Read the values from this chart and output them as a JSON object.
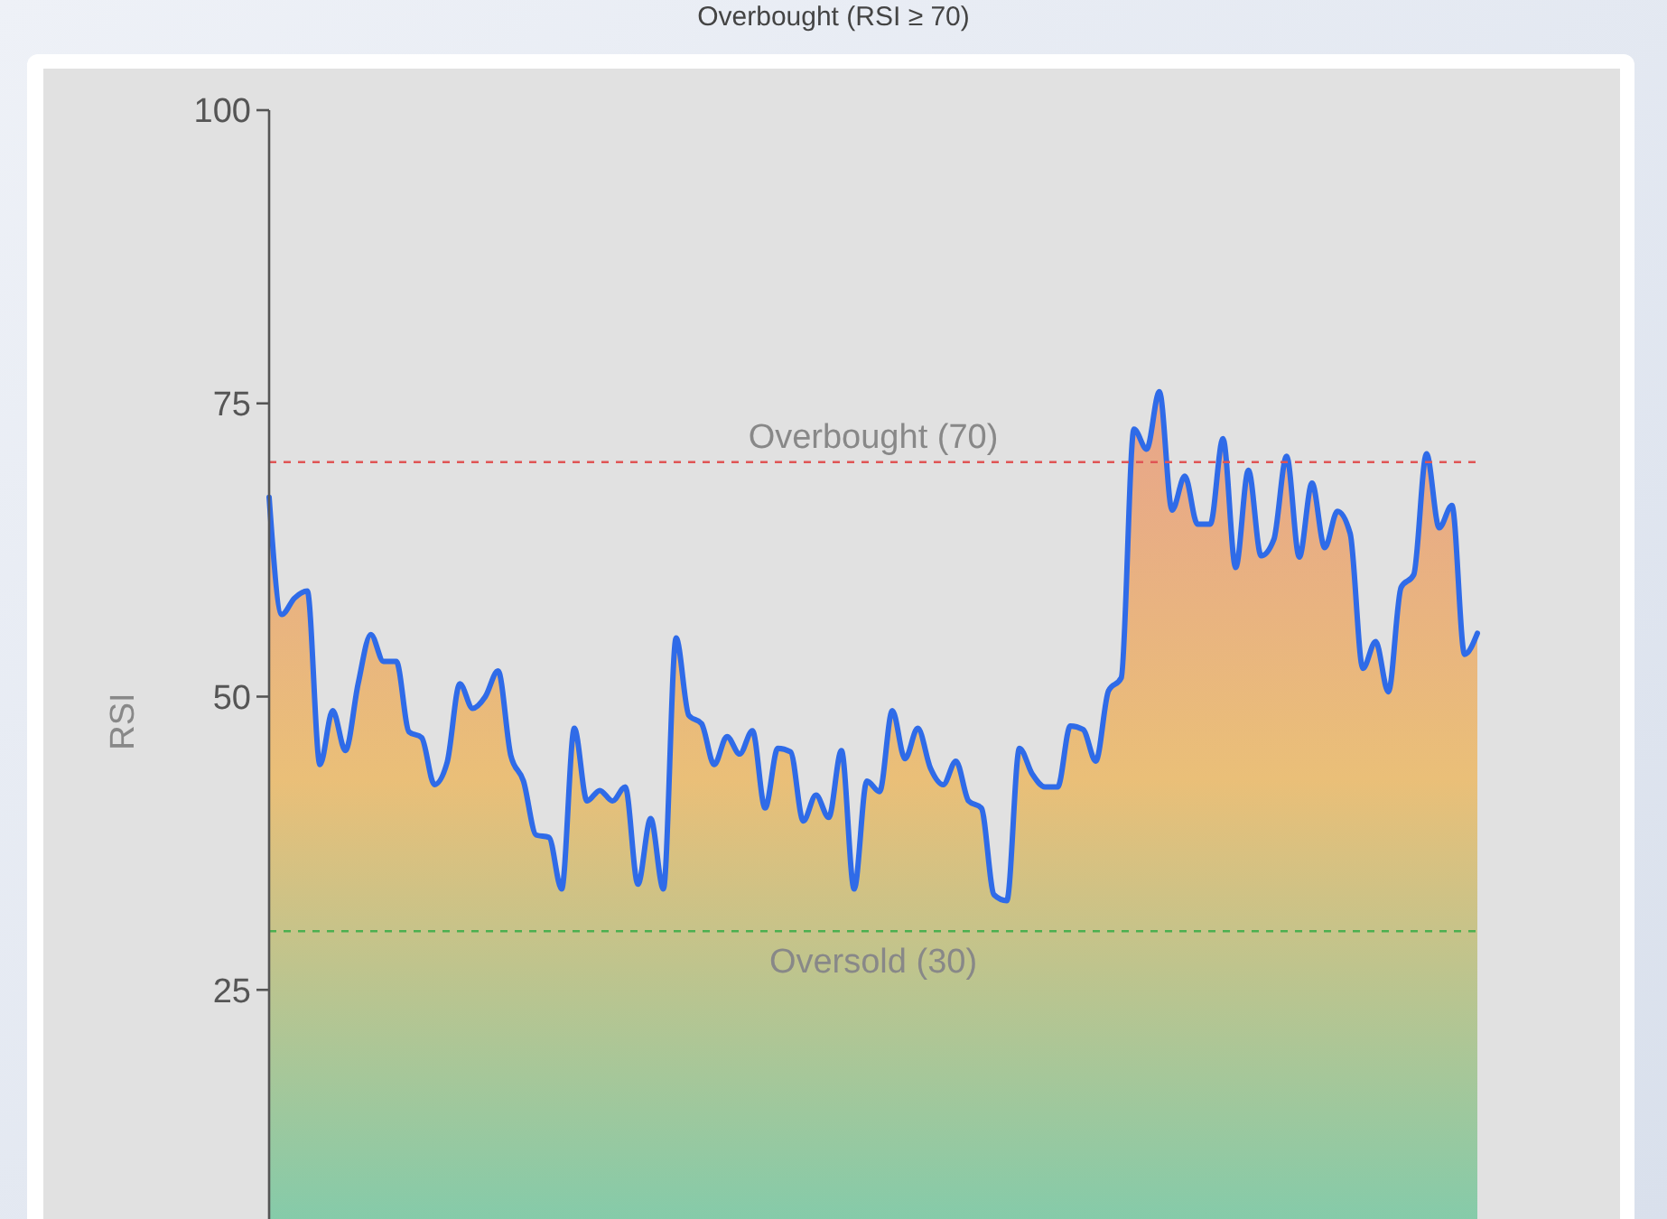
{
  "chart_data": {
    "type": "area",
    "title": "Overbought (RSI ≥ 70)",
    "ylabel": "RSI",
    "categories": [
      null,
      null,
      null,
      null,
      null,
      null,
      null,
      null,
      null,
      null,
      null,
      null,
      null,
      null,
      null,
      null,
      null,
      null,
      null,
      null,
      null,
      null,
      null,
      null,
      null,
      null,
      null,
      null,
      null,
      null,
      null,
      null,
      null,
      null,
      null,
      null,
      null,
      null,
      null,
      null,
      null,
      null,
      null,
      null,
      null,
      null,
      null,
      null,
      null,
      null,
      null,
      null,
      null,
      null,
      null,
      null,
      null,
      null,
      null,
      null,
      null,
      null,
      null,
      null,
      null,
      null,
      null,
      null,
      null,
      null,
      null,
      null,
      null,
      null,
      null,
      null,
      null,
      null,
      null,
      null,
      null,
      null,
      null,
      null,
      null,
      null,
      null,
      null,
      null,
      null,
      null,
      null,
      null,
      null,
      null,
      null
    ],
    "series": [
      {
        "color": "#2f6be8",
        "values": [
          67,
          57,
          58.4,
          59,
          44.2,
          48.8,
          45.4,
          51.1,
          55.3,
          53,
          53,
          47,
          46.5,
          42.5,
          44.4,
          51.1,
          49,
          50,
          52.2,
          45,
          42.8,
          38.2,
          38,
          33.6,
          47.3,
          41.1,
          42,
          41.1,
          42.3,
          34,
          39.6,
          33.6,
          55,
          48.4,
          47.7,
          44.2,
          46.6,
          45.1,
          47.1,
          40.5,
          45.6,
          45.3,
          39.4,
          41.6,
          39.7,
          45.4,
          33.6,
          42.8,
          41.9,
          48.8,
          44.7,
          47.3,
          43.9,
          42.5,
          44.5,
          41.1,
          40.5,
          33.1,
          32.6,
          45.6,
          43.4,
          42.3,
          42.3,
          47.5,
          47.2,
          44.5,
          50.5,
          51.6,
          72.8,
          71.1,
          76,
          65.9,
          68.8,
          64.7,
          64.7,
          72,
          61,
          69.3,
          62,
          63.4,
          70.5,
          61.9,
          68.2,
          62.7,
          65.8,
          63.9,
          52.4,
          54.7,
          50.4,
          59.3,
          60.4,
          70.7,
          64.4,
          66.3,
          53.6,
          55.4
        ]
      }
    ],
    "ylim": [
      5,
      100
    ],
    "yticks": [
      25,
      50,
      75,
      100
    ],
    "grid": false,
    "ref_lines": [
      {
        "axis": "y",
        "value": 70,
        "label": "Overbought (70)",
        "color": "#e05555",
        "line_style": "dashed"
      },
      {
        "axis": "y",
        "value": 30,
        "label": "Oversold (30)",
        "color": "#4caf50",
        "line_style": "dashed"
      }
    ]
  }
}
